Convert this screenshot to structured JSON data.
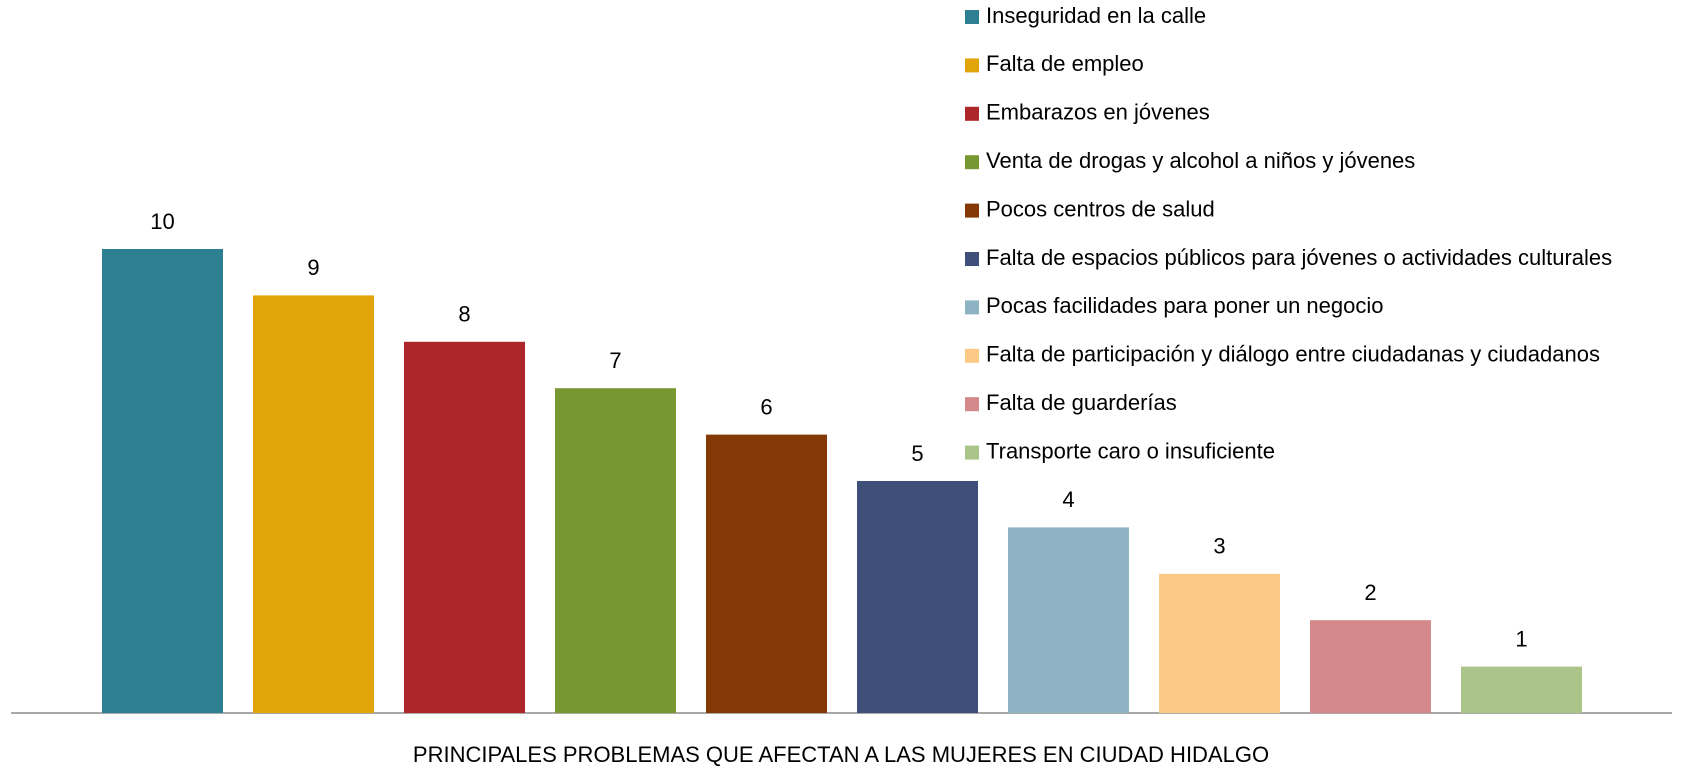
{
  "chart_data": {
    "type": "bar",
    "xlabel": "PRINCIPALES PROBLEMAS QUE AFECTAN A LAS MUJERES EN CIUDAD HIDALGO",
    "series": [
      {
        "name": "Inseguridad en la calle",
        "color": "#2e7f91",
        "values": [
          10
        ]
      },
      {
        "name": "Falta de empleo",
        "color": "#e1a40a",
        "values": [
          9
        ]
      },
      {
        "name": "Embarazos en jóvenes",
        "color": "#ac262a",
        "values": [
          8
        ]
      },
      {
        "name": "Venta de drogas y alcohol a niños y jóvenes",
        "color": "#779730",
        "values": [
          7
        ]
      },
      {
        "name": "Pocos centros de salud",
        "color": "#843906",
        "values": [
          6
        ]
      },
      {
        "name": "Falta de espacios públicos para jóvenes o actividades culturales",
        "color": "#3e5079",
        "values": [
          5
        ]
      },
      {
        "name": "Pocas facilidades para poner un negocio",
        "color": "#8eb3c2",
        "values": [
          4
        ]
      },
      {
        "name": "Falta de participación y diálogo entre ciudadanas y ciudadanos",
        "color": "#fdca86",
        "values": [
          3
        ]
      },
      {
        "name": "Falta de guarderías",
        "color": "#d4888a",
        "values": [
          2
        ]
      },
      {
        "name": "Transporte caro o insuficiente",
        "color": "#abc48a",
        "values": [
          1
        ]
      }
    ],
    "legend": "top-right"
  }
}
